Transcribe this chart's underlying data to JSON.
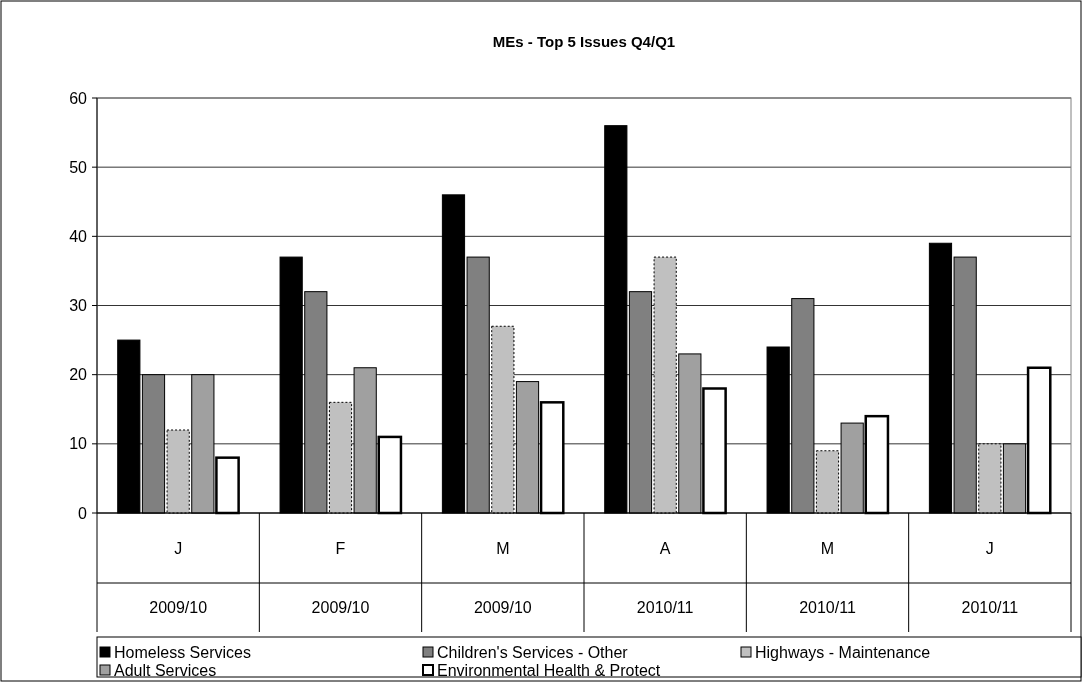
{
  "chart_data": {
    "type": "bar",
    "title": "MEs - Top 5 Issues Q4/Q1",
    "categories": [
      "J\n2009/10",
      "F\n2009/10",
      "M\n2009/10",
      "A\n2010/11",
      "M\n2010/11",
      "J\n2010/11"
    ],
    "series": [
      {
        "name": "Homeless Services",
        "color": "#000000",
        "values": [
          25,
          37,
          46,
          56,
          24,
          39
        ]
      },
      {
        "name": "Children's Services - Other",
        "color": "#808080",
        "values": [
          20,
          32,
          37,
          32,
          31,
          37
        ]
      },
      {
        "name": "Highways - Maintenance",
        "color": "#c0c0c0",
        "values": [
          12,
          16,
          27,
          37,
          9,
          10
        ]
      },
      {
        "name": "Adult Services",
        "color": "#a0a0a0",
        "values": [
          20,
          21,
          19,
          23,
          13,
          10
        ]
      },
      {
        "name": "Environmental Health & Protect",
        "color": "#ffffff",
        "values": [
          8,
          11,
          16,
          18,
          14,
          21
        ]
      }
    ],
    "ylim": [
      0,
      60
    ],
    "yticks": [
      0,
      10,
      20,
      30,
      40,
      50,
      60
    ],
    "grid": "y",
    "legend": "bottom"
  }
}
